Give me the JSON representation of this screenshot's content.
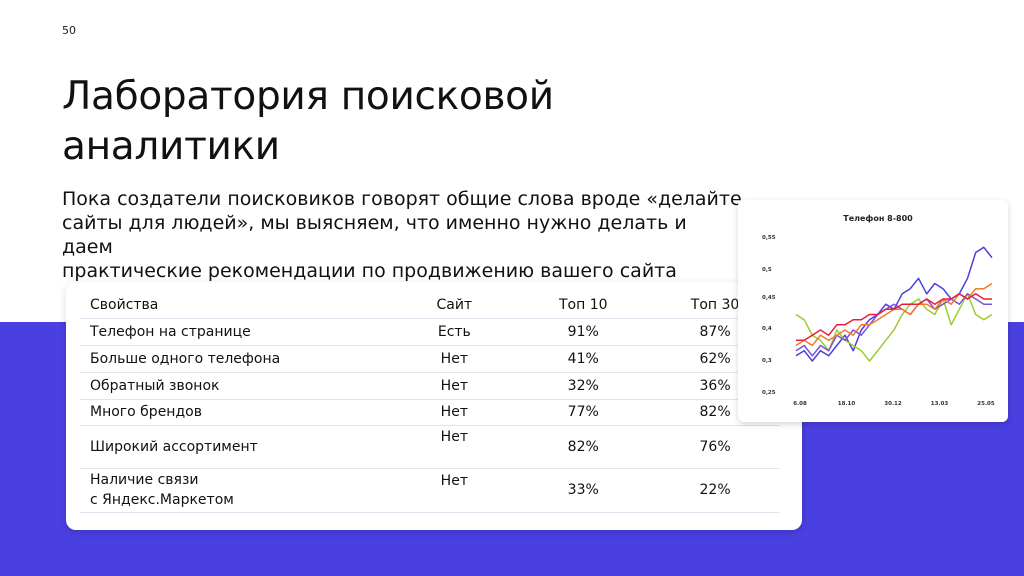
{
  "page_number": "50",
  "title_line1": "Лаборатория поисковой",
  "title_line2": "аналитики",
  "lead_line1": "Пока создатели поисковиков говорят общие слова вроде «делайте",
  "lead_line2": "сайты для людей», мы выясняем, что именно нужно делать и даем",
  "lead_line3": "практические рекомендации по продвижению вашего сайта",
  "table": {
    "headers": [
      "Свойства",
      "Сайт",
      "Топ 10",
      "Топ 30"
    ],
    "rows": [
      {
        "property": "Телефон на странице",
        "site": "Есть",
        "top10": "91%",
        "top30": "87%"
      },
      {
        "property": "Больше одного телефона",
        "site": "Нет",
        "top10": "41%",
        "top30": "62%"
      },
      {
        "property": "Обратный звонок",
        "site": "Нет",
        "top10": "32%",
        "top30": "36%"
      },
      {
        "property": "Много брендов",
        "site": "Нет",
        "top10": "77%",
        "top30": "82%"
      },
      {
        "property": "Широкий ассортимент",
        "site": "Нет",
        "top10": "82%",
        "top30": "76%"
      },
      {
        "property_line1": "Наличие связи",
        "property_line2": "с Яндекс.Маркетом",
        "site": "Нет",
        "top10": "33%",
        "top30": "22%"
      }
    ]
  },
  "colors": {
    "band": "#4a3fe0",
    "series": [
      "#4a3fe0",
      "#9acd32",
      "#7b52d9",
      "#f07a28",
      "#e81e3c"
    ]
  },
  "chart_data": {
    "type": "line",
    "title": "Телефон 8-800",
    "xlabel": "",
    "ylabel": "",
    "x_ticks": [
      "6.08",
      "18.10",
      "30.12",
      "13.03",
      "25.05"
    ],
    "y_ticks": [
      "0,55",
      "0,5",
      "0,45",
      "0,4",
      "0,3",
      "0,25"
    ],
    "ylim": [
      0.25,
      0.55
    ],
    "grid": false,
    "legend": "none",
    "series": [
      {
        "color": "#4a3fe0",
        "values": [
          0.32,
          0.33,
          0.31,
          0.33,
          0.32,
          0.34,
          0.36,
          0.33,
          0.37,
          0.39,
          0.4,
          0.42,
          0.41,
          0.44,
          0.45,
          0.47,
          0.44,
          0.46,
          0.45,
          0.43,
          0.44,
          0.47,
          0.52,
          0.53,
          0.51
        ]
      },
      {
        "color": "#9acd32",
        "values": [
          0.4,
          0.39,
          0.36,
          0.35,
          0.33,
          0.37,
          0.35,
          0.34,
          0.33,
          0.31,
          0.33,
          0.35,
          0.37,
          0.4,
          0.42,
          0.43,
          0.41,
          0.4,
          0.43,
          0.38,
          0.41,
          0.44,
          0.4,
          0.39,
          0.4
        ]
      },
      {
        "color": "#7b52d9",
        "values": [
          0.33,
          0.34,
          0.32,
          0.34,
          0.33,
          0.36,
          0.35,
          0.37,
          0.36,
          0.38,
          0.4,
          0.41,
          0.42,
          0.41,
          0.4,
          0.42,
          0.43,
          0.41,
          0.42,
          0.43,
          0.42,
          0.44,
          0.43,
          0.42,
          0.42
        ]
      },
      {
        "color": "#f07a28",
        "values": [
          0.34,
          0.35,
          0.34,
          0.36,
          0.35,
          0.36,
          0.37,
          0.36,
          0.38,
          0.38,
          0.39,
          0.4,
          0.41,
          0.41,
          0.4,
          0.42,
          0.42,
          0.41,
          0.43,
          0.42,
          0.44,
          0.43,
          0.45,
          0.45,
          0.46
        ]
      },
      {
        "color": "#e81e3c",
        "values": [
          0.35,
          0.35,
          0.36,
          0.37,
          0.36,
          0.38,
          0.38,
          0.39,
          0.39,
          0.4,
          0.4,
          0.41,
          0.41,
          0.42,
          0.42,
          0.42,
          0.43,
          0.42,
          0.43,
          0.43,
          0.44,
          0.43,
          0.44,
          0.43,
          0.43
        ]
      }
    ]
  }
}
